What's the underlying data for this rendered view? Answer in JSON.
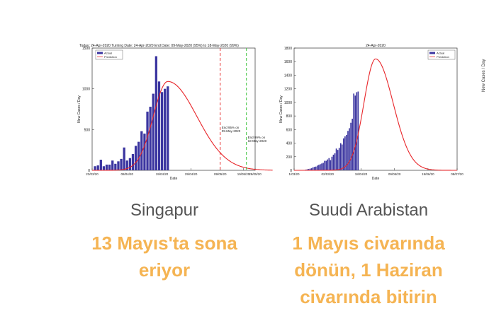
{
  "chart_data": [
    {
      "type": "bar",
      "country": "Singapur",
      "header": "Today: 24-Apr-2020  Turning Date: 24-Apr-2020  End Date: 09-May-2020 (95%) to 18-May-2020 (99%)",
      "title": "",
      "xlabel": "Date",
      "ylabel": "New Cases / Day",
      "ylim": [
        0,
        1500
      ],
      "yticks": [
        0,
        500,
        1000,
        1500
      ],
      "xlim": [
        0,
        56
      ],
      "xticks": [
        {
          "x": 0,
          "label": "23/03/20"
        },
        {
          "x": 12,
          "label": "08/04/20"
        },
        {
          "x": 24,
          "label": "19/04/20"
        },
        {
          "x": 34,
          "label": "29/04/20"
        },
        {
          "x": 44,
          "label": "09/05/20"
        },
        {
          "x": 52,
          "label": "19/05/20"
        },
        {
          "x": 62,
          "label": "29/05/20"
        }
      ],
      "legend": [
        "Actual",
        "Prediction"
      ],
      "legend_position": "top-left",
      "actual": {
        "start_x": 1,
        "values": [
          50,
          60,
          130,
          50,
          70,
          70,
          120,
          80,
          110,
          140,
          280,
          120,
          150,
          200,
          300,
          350,
          480,
          450,
          720,
          780,
          940,
          1400,
          1090,
          960,
          1000,
          1030
        ]
      },
      "prediction": {
        "peak_x": 26,
        "peak": 1090,
        "sigma_left": 5,
        "sigma_right": 10,
        "x_end": 62
      },
      "annotations": [
        {
          "x": 44,
          "color": "#e63030",
          "text_line1": "End 95% on",
          "text_line2": "09-May-2020",
          "value_y": 510
        },
        {
          "x": 53,
          "color": "#3ec43e",
          "text_line1": "End 99% on",
          "text_line2": "18-May-2020",
          "value_y": 390
        }
      ]
    },
    {
      "type": "bar",
      "country": "Suudi Arabistan",
      "header": "24-Apr-2020",
      "title": "",
      "xlabel": "Date",
      "ylabel": "New Cases / Day",
      "ylim": [
        0,
        1800
      ],
      "yticks": [
        0,
        200,
        400,
        600,
        800,
        1000,
        1200,
        1400,
        1600,
        1800
      ],
      "xlim": [
        0,
        112
      ],
      "xticks": [
        {
          "x": 0,
          "label": "1/03/20"
        },
        {
          "x": 23,
          "label": "02/03/20"
        },
        {
          "x": 46,
          "label": "18/04/20"
        },
        {
          "x": 69,
          "label": "09/05/20"
        },
        {
          "x": 92,
          "label": "19/06/20"
        },
        {
          "x": 112,
          "label": "08/07/20"
        }
      ],
      "legend": [
        "Actual",
        "Prediction"
      ],
      "legend_position": "top-right",
      "actual": {
        "start_x": 8,
        "values": [
          10,
          15,
          20,
          25,
          30,
          45,
          50,
          55,
          70,
          80,
          90,
          100,
          110,
          140,
          140,
          160,
          180,
          150,
          200,
          230,
          250,
          320,
          300,
          330,
          400,
          380,
          470,
          500,
          520,
          580,
          620,
          700,
          760,
          1130,
          1100,
          1150,
          1160
        ]
      },
      "prediction": {
        "peak_x": 56,
        "peak": 1640,
        "sigma_left": 8,
        "sigma_right": 12,
        "x_end": 112
      }
    }
  ],
  "captions": [
    {
      "country": "Singapur",
      "headline_1": "13 Mayıs'ta sona",
      "headline_2": "eriyor",
      "headline_3": ""
    },
    {
      "country": "Suudi Arabistan",
      "headline_1": "1 Mayıs civarında",
      "headline_2": "dönün, 1 Haziran",
      "headline_3": "civarında bitirin"
    }
  ],
  "third_chart_edge": {
    "ylabel": "New Cases / Day"
  },
  "colors": {
    "bars": "#3b35a0",
    "prediction": "#e8262a",
    "headline": "#f5b453",
    "country": "#555555"
  }
}
